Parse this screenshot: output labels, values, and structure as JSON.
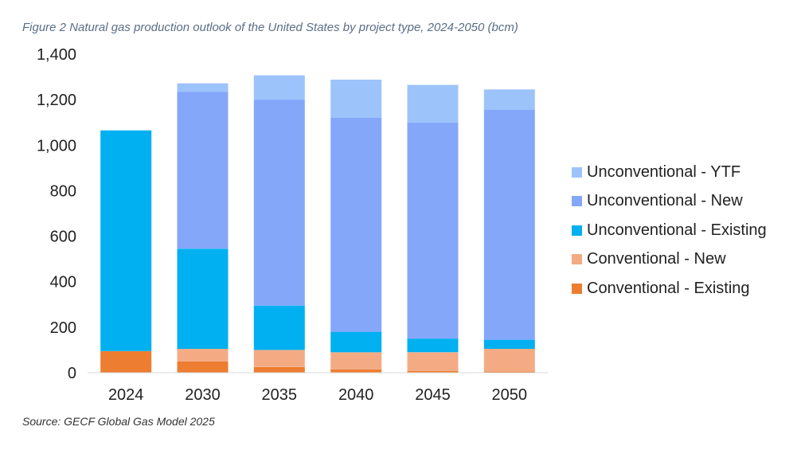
{
  "title": "Figure 2 Natural gas production outlook of the United States by project type, 2024-2050 (bcm)",
  "source": "Source: GECF Global Gas Model 2025",
  "chart_data": {
    "type": "bar",
    "stacked": true,
    "categories": [
      "2024",
      "2030",
      "2035",
      "2040",
      "2045",
      "2050"
    ],
    "ylim": [
      0,
      1400
    ],
    "yticks": [
      0,
      200,
      400,
      600,
      800,
      1000,
      1200,
      1400
    ],
    "ytick_labels": [
      "0",
      "200",
      "400",
      "600",
      "800",
      "1,000",
      "1,200",
      "1,400"
    ],
    "grid": false,
    "legend_position": "right",
    "series": [
      {
        "name": "Conventional - Existing",
        "color": "#ED7D31",
        "values": [
          95,
          50,
          25,
          15,
          8,
          5
        ]
      },
      {
        "name": "Conventional - New",
        "color": "#F4AB84",
        "values": [
          0,
          55,
          75,
          75,
          82,
          100
        ]
      },
      {
        "name": "Unconventional - Existing",
        "color": "#00B0F0",
        "values": [
          970,
          440,
          195,
          90,
          60,
          40
        ]
      },
      {
        "name": "Unconventional - New",
        "color": "#85A7FA",
        "values": [
          0,
          690,
          905,
          940,
          950,
          1010
        ]
      },
      {
        "name": "Unconventional - YTF",
        "color": "#9DC3FB",
        "values": [
          0,
          37,
          107,
          168,
          165,
          90
        ]
      }
    ]
  }
}
